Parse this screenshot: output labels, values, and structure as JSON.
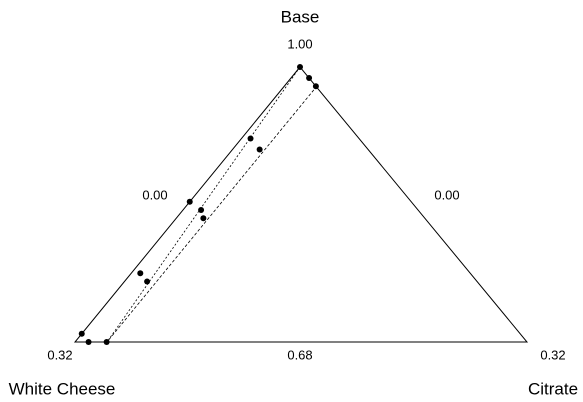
{
  "chart_data": {
    "type": "ternary",
    "title": "Base",
    "left_label": "White Cheese",
    "right_label": "Citrate",
    "axis_labels": [
      "1.00",
      "0.00",
      "0.00",
      "0.32",
      "0.68",
      "0.32"
    ],
    "color": "#000000",
    "points": [
      {
        "base": 1.0,
        "white_cheese": 0.0,
        "citrate": 0.0
      },
      {
        "base": 0.96,
        "white_cheese": 0.0,
        "citrate": 0.04
      },
      {
        "base": 0.93,
        "white_cheese": 0.0,
        "citrate": 0.07
      },
      {
        "base": 0.74,
        "white_cheese": 0.24,
        "citrate": 0.02
      },
      {
        "base": 0.7,
        "white_cheese": 0.24,
        "citrate": 0.06
      },
      {
        "base": 0.51,
        "white_cheese": 0.49,
        "citrate": 0.0
      },
      {
        "base": 0.48,
        "white_cheese": 0.48,
        "citrate": 0.04
      },
      {
        "base": 0.45,
        "white_cheese": 0.49,
        "citrate": 0.06
      },
      {
        "base": 0.25,
        "white_cheese": 0.73,
        "citrate": 0.02
      },
      {
        "base": 0.22,
        "white_cheese": 0.73,
        "citrate": 0.05
      },
      {
        "base": 0.03,
        "white_cheese": 0.97,
        "citrate": 0.0
      },
      {
        "base": 0.0,
        "white_cheese": 0.97,
        "citrate": 0.03
      },
      {
        "base": 0.0,
        "white_cheese": 0.93,
        "citrate": 0.07
      }
    ]
  }
}
